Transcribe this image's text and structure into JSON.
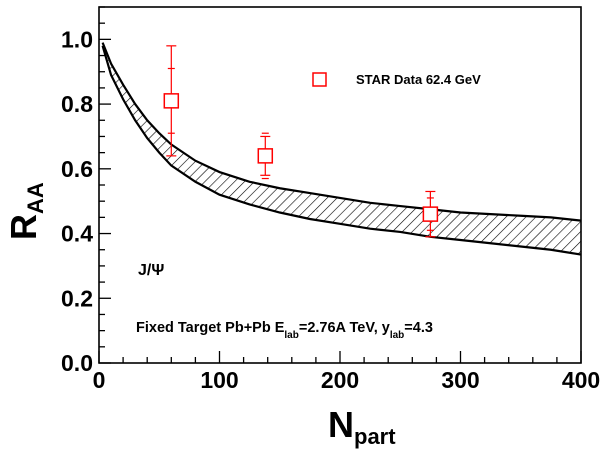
{
  "chart_data": {
    "type": "scatter",
    "xlabel": {
      "main": "N",
      "sub": "part"
    },
    "ylabel": {
      "main": "R",
      "sub": "AA"
    },
    "xlim": [
      0,
      400
    ],
    "ylim": [
      0,
      1.1
    ],
    "x_ticks": [
      0,
      100,
      200,
      300,
      400
    ],
    "x_tick_labels": [
      "0",
      "100",
      "200",
      "300",
      "400"
    ],
    "y_ticks": [
      0,
      0.2,
      0.4,
      0.6,
      0.8,
      1.0
    ],
    "y_tick_labels": [
      "0.0",
      "0.2",
      "0.4",
      "0.6",
      "0.8",
      "1.0"
    ],
    "grid": false,
    "series": [
      {
        "name": "STAR Data 62.4 GeV",
        "marker": "open-square",
        "color": "#ff0000",
        "x": [
          60,
          138,
          275
        ],
        "y": [
          0.81,
          0.64,
          0.46
        ],
        "err_stat": [
          0.17,
          0.06,
          0.07
        ],
        "err_sys": [
          0.1,
          0.07,
          0.05
        ]
      }
    ],
    "band": {
      "color": "#000000",
      "fill": "hatched",
      "x": [
        3,
        10,
        20,
        30,
        40,
        50,
        60,
        80,
        100,
        125,
        150,
        175,
        200,
        225,
        250,
        275,
        300,
        325,
        350,
        375,
        400
      ],
      "upper": [
        0.99,
        0.925,
        0.86,
        0.8,
        0.75,
        0.71,
        0.675,
        0.625,
        0.59,
        0.56,
        0.54,
        0.525,
        0.51,
        0.495,
        0.485,
        0.475,
        0.465,
        0.46,
        0.455,
        0.45,
        0.44
      ],
      "lower": [
        0.98,
        0.89,
        0.815,
        0.75,
        0.695,
        0.65,
        0.61,
        0.56,
        0.52,
        0.49,
        0.465,
        0.445,
        0.43,
        0.415,
        0.405,
        0.39,
        0.38,
        0.37,
        0.36,
        0.35,
        0.335
      ]
    },
    "legend_position": "top-right",
    "annotations": {
      "particle": "J/Ψ",
      "system": {
        "part1": "Fixed Target Pb+Pb E",
        "sub1": "lab",
        "part2": "=2.76A TeV, y",
        "sub2": "lab",
        "part3": "=4.3"
      }
    }
  }
}
